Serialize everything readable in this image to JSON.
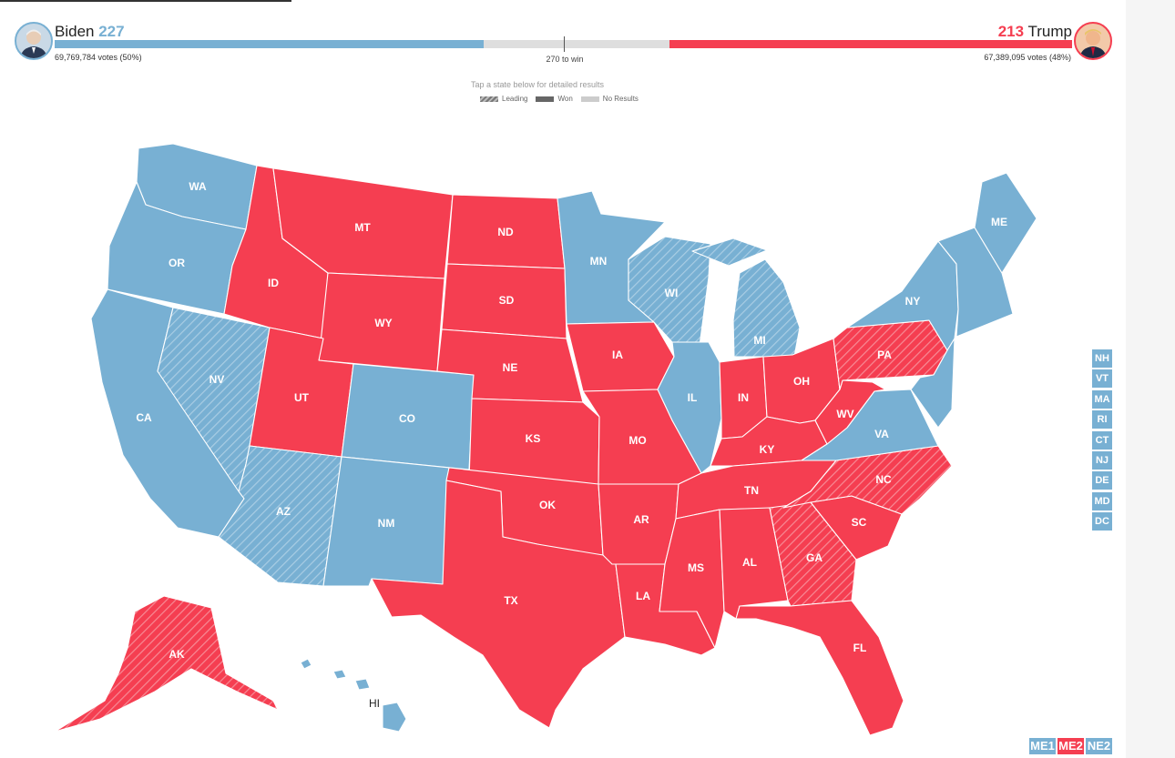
{
  "header": {
    "biden": {
      "name": "Biden",
      "ev": "227",
      "votes": "69,769,784 votes (50%)",
      "color": "#78b0d3",
      "ev_number": 227
    },
    "trump": {
      "name": "Trump",
      "ev": "213",
      "votes": "67,389,095 votes (48%)",
      "color": "#f53e51",
      "ev_number": 213
    },
    "to_win": "270 to win",
    "total_ev": 538
  },
  "tap_note": "Tap a state below for detailed results",
  "legend": {
    "leading": "Leading",
    "won": "Won",
    "no_results": "No Results"
  },
  "colors": {
    "dem": "#78b0d3",
    "rep": "#f53e51",
    "none": "#cccccc"
  },
  "states": {
    "WA": {
      "label": "WA",
      "party": "dem",
      "status": "won"
    },
    "OR": {
      "label": "OR",
      "party": "dem",
      "status": "won"
    },
    "CA": {
      "label": "CA",
      "party": "dem",
      "status": "won"
    },
    "NV": {
      "label": "NV",
      "party": "dem",
      "status": "leading"
    },
    "ID": {
      "label": "ID",
      "party": "rep",
      "status": "won"
    },
    "MT": {
      "label": "MT",
      "party": "rep",
      "status": "won"
    },
    "WY": {
      "label": "WY",
      "party": "rep",
      "status": "won"
    },
    "UT": {
      "label": "UT",
      "party": "rep",
      "status": "won"
    },
    "AZ": {
      "label": "AZ",
      "party": "dem",
      "status": "leading"
    },
    "CO": {
      "label": "CO",
      "party": "dem",
      "status": "won"
    },
    "NM": {
      "label": "NM",
      "party": "dem",
      "status": "won"
    },
    "ND": {
      "label": "ND",
      "party": "rep",
      "status": "won"
    },
    "SD": {
      "label": "SD",
      "party": "rep",
      "status": "won"
    },
    "NE": {
      "label": "NE",
      "party": "rep",
      "status": "won"
    },
    "KS": {
      "label": "KS",
      "party": "rep",
      "status": "won"
    },
    "OK": {
      "label": "OK",
      "party": "rep",
      "status": "won"
    },
    "TX": {
      "label": "TX",
      "party": "rep",
      "status": "won"
    },
    "MN": {
      "label": "MN",
      "party": "dem",
      "status": "won"
    },
    "IA": {
      "label": "IA",
      "party": "rep",
      "status": "won"
    },
    "MO": {
      "label": "MO",
      "party": "rep",
      "status": "won"
    },
    "AR": {
      "label": "AR",
      "party": "rep",
      "status": "won"
    },
    "LA": {
      "label": "LA",
      "party": "rep",
      "status": "won"
    },
    "WI": {
      "label": "WI",
      "party": "dem",
      "status": "leading"
    },
    "IL": {
      "label": "IL",
      "party": "dem",
      "status": "won"
    },
    "MI": {
      "label": "MI",
      "party": "dem",
      "status": "leading"
    },
    "IN": {
      "label": "IN",
      "party": "rep",
      "status": "won"
    },
    "OH": {
      "label": "OH",
      "party": "rep",
      "status": "won"
    },
    "KY": {
      "label": "KY",
      "party": "rep",
      "status": "won"
    },
    "TN": {
      "label": "TN",
      "party": "rep",
      "status": "won"
    },
    "MS": {
      "label": "MS",
      "party": "rep",
      "status": "won"
    },
    "AL": {
      "label": "AL",
      "party": "rep",
      "status": "won"
    },
    "GA": {
      "label": "GA",
      "party": "rep",
      "status": "leading"
    },
    "FL": {
      "label": "FL",
      "party": "rep",
      "status": "won"
    },
    "SC": {
      "label": "SC",
      "party": "rep",
      "status": "won"
    },
    "NC": {
      "label": "NC",
      "party": "rep",
      "status": "leading"
    },
    "VA": {
      "label": "VA",
      "party": "dem",
      "status": "won"
    },
    "WV": {
      "label": "WV",
      "party": "rep",
      "status": "won"
    },
    "PA": {
      "label": "PA",
      "party": "rep",
      "status": "leading"
    },
    "NY": {
      "label": "NY",
      "party": "dem",
      "status": "won"
    },
    "ME": {
      "label": "ME",
      "party": "dem",
      "status": "won"
    },
    "NE_REGION": {
      "label": "",
      "party": "dem",
      "status": "won"
    },
    "AK": {
      "label": "AK",
      "party": "rep",
      "status": "leading"
    },
    "HI": {
      "label": "HI",
      "party": "dem",
      "status": "won"
    }
  },
  "small_states": [
    {
      "label": "NH",
      "party": "dem"
    },
    {
      "label": "VT",
      "party": "dem"
    },
    {
      "label": "MA",
      "party": "dem"
    },
    {
      "label": "RI",
      "party": "dem"
    },
    {
      "label": "CT",
      "party": "dem"
    },
    {
      "label": "NJ",
      "party": "dem"
    },
    {
      "label": "DE",
      "party": "dem"
    },
    {
      "label": "MD",
      "party": "dem"
    },
    {
      "label": "DC",
      "party": "dem"
    }
  ],
  "districts": [
    {
      "label": "ME1",
      "party": "dem"
    },
    {
      "label": "ME2",
      "party": "rep"
    },
    {
      "label": "NE2",
      "party": "dem"
    }
  ]
}
